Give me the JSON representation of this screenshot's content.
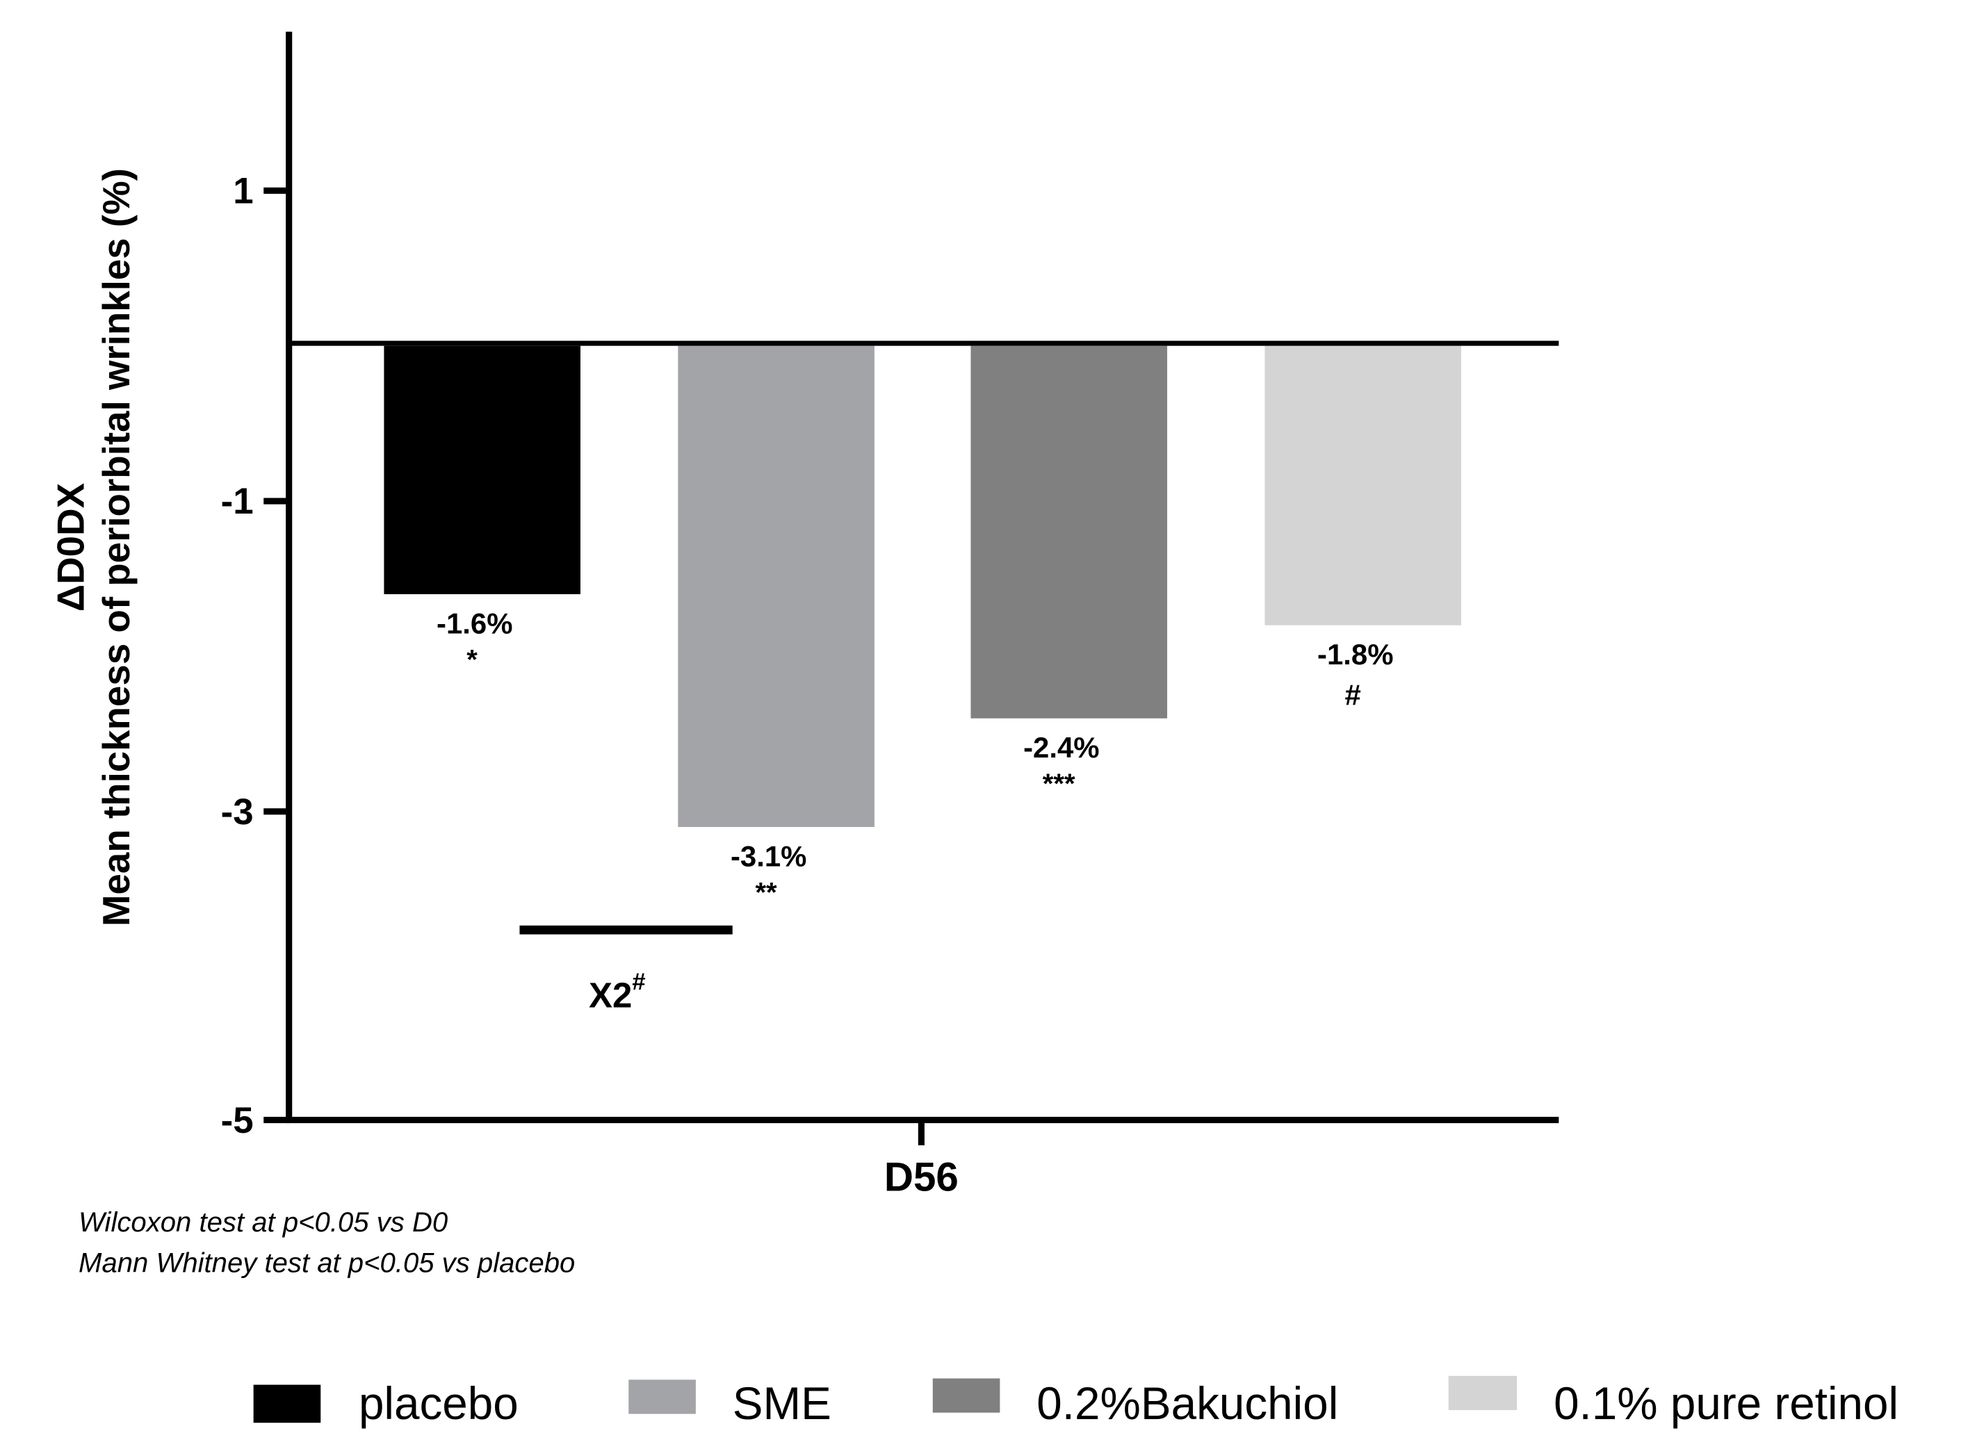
{
  "chart_data": {
    "type": "bar",
    "ylabel_line1": "ΔD0DX",
    "ylabel_line2": "Mean thickness of periorbital wrinkles (%)",
    "categories": [
      "D56"
    ],
    "ylim": [
      -5,
      2
    ],
    "yticks": [
      1,
      -1,
      -3,
      -5
    ],
    "ytick_labels": [
      "1",
      "-1",
      "-3",
      "-5"
    ],
    "grid": false,
    "legend_position": "bottom",
    "series": [
      {
        "name": "placebo",
        "value": -1.6,
        "label": "-1.6%",
        "significance": "*",
        "color": "#000000"
      },
      {
        "name": "SME",
        "value": -3.1,
        "label": "-3.1%",
        "significance": "**",
        "color": "#a3a4a8"
      },
      {
        "name": "0.2%Bakuchiol",
        "value": -2.4,
        "label": "-2.4%",
        "significance": "***",
        "color": "#808080"
      },
      {
        "name": "0.1% pure retinol",
        "value": -1.8,
        "label": "-1.8%",
        "significance": "#",
        "color": "#d4d4d4"
      }
    ],
    "comparison": {
      "from": "placebo",
      "to": "SME",
      "label": "X2",
      "superscript": "#"
    },
    "notes": [
      "Wilcoxon test at p<0.05 vs D0",
      "Mann Whitney test at p<0.05 vs placebo"
    ]
  }
}
